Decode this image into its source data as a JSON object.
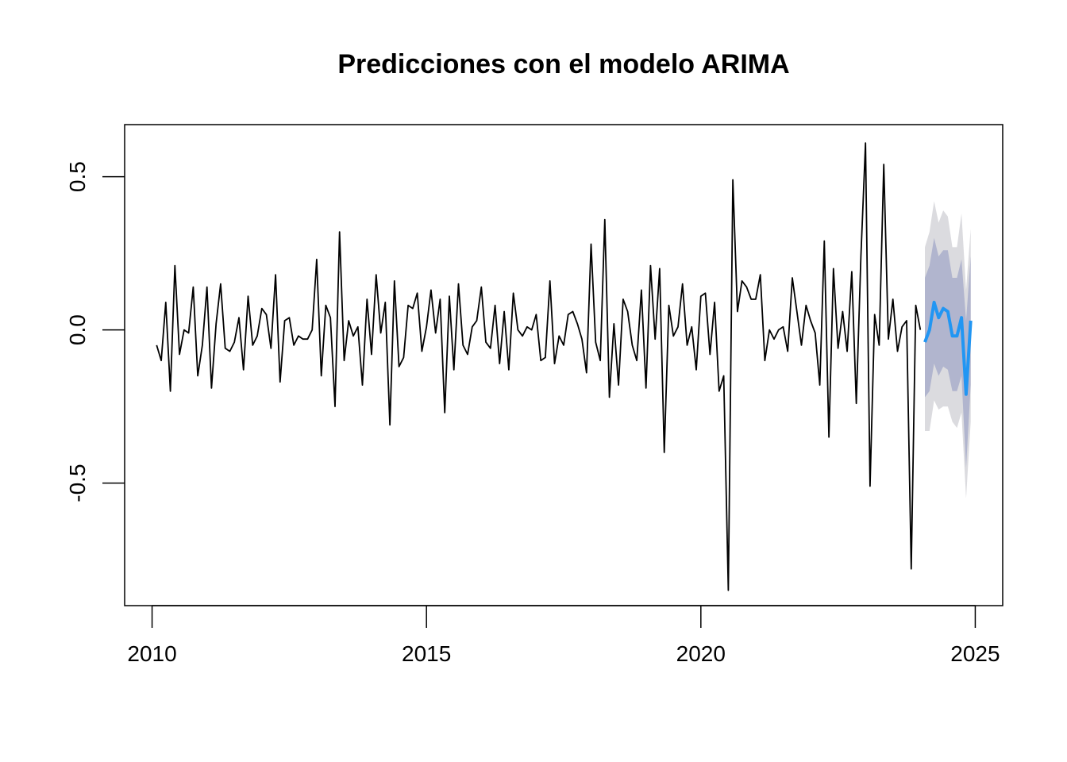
{
  "chart_data": {
    "type": "line",
    "title": "Predicciones con el modelo ARIMA",
    "xlabel": "",
    "ylabel": "",
    "xlim": [
      2009.5,
      2025.5
    ],
    "ylim": [
      -0.9,
      0.67
    ],
    "x_ticks": [
      2010,
      2015,
      2020,
      2025
    ],
    "x_tick_labels": [
      "2010",
      "2015",
      "2020",
      "2025"
    ],
    "y_ticks": [
      -0.5,
      0.0,
      0.5
    ],
    "y_tick_labels": [
      "-0.5",
      "0.0",
      "0.5"
    ],
    "grid": false,
    "legend": "none",
    "colors": {
      "observed": "#000000",
      "forecast": "#2196F3",
      "band_95": "#DBDBDF",
      "band_80": "#B1B5CE"
    },
    "series": [
      {
        "role": "observed",
        "start": 2010.083,
        "frequency": 12,
        "values": [
          -0.05,
          -0.1,
          0.09,
          -0.2,
          0.21,
          -0.08,
          0.0,
          -0.01,
          0.14,
          -0.15,
          -0.05,
          0.14,
          -0.19,
          0.02,
          0.15,
          -0.06,
          -0.07,
          -0.04,
          0.04,
          -0.13,
          0.11,
          -0.05,
          -0.02,
          0.07,
          0.05,
          -0.06,
          0.18,
          -0.17,
          0.03,
          0.04,
          -0.05,
          -0.02,
          -0.03,
          -0.03,
          0.0,
          0.23,
          -0.15,
          0.08,
          0.04,
          -0.25,
          0.32,
          -0.1,
          0.03,
          -0.02,
          0.01,
          -0.18,
          0.1,
          -0.08,
          0.18,
          -0.01,
          0.09,
          -0.31,
          0.16,
          -0.12,
          -0.09,
          0.08,
          0.07,
          0.12,
          -0.07,
          0.01,
          0.13,
          -0.01,
          0.1,
          -0.27,
          0.11,
          -0.13,
          0.15,
          -0.05,
          -0.08,
          0.01,
          0.03,
          0.14,
          -0.04,
          -0.06,
          0.08,
          -0.11,
          0.06,
          -0.13,
          0.12,
          0.0,
          -0.02,
          0.01,
          0.0,
          0.05,
          -0.1,
          -0.09,
          0.16,
          -0.11,
          -0.02,
          -0.05,
          0.05,
          0.06,
          0.02,
          -0.03,
          -0.14,
          0.28,
          -0.04,
          -0.1,
          0.36,
          -0.22,
          0.02,
          -0.18,
          0.1,
          0.06,
          -0.05,
          -0.1,
          0.13,
          -0.19,
          0.21,
          -0.03,
          0.2,
          -0.4,
          0.08,
          -0.02,
          0.01,
          0.15,
          -0.05,
          0.01,
          -0.13,
          0.11,
          0.12,
          -0.08,
          0.09,
          -0.2,
          -0.15,
          -0.85,
          0.49,
          0.06,
          0.16,
          0.14,
          0.1,
          0.1,
          0.18,
          -0.1,
          0.0,
          -0.03,
          0.0,
          0.01,
          -0.07,
          0.17,
          0.06,
          -0.05,
          0.08,
          0.03,
          -0.01,
          -0.18,
          0.29,
          -0.35,
          0.2,
          -0.06,
          0.06,
          -0.07,
          0.19,
          -0.24,
          0.24,
          0.61,
          -0.51,
          0.05,
          -0.05,
          0.54,
          -0.03,
          0.1,
          -0.07,
          0.01,
          0.03,
          -0.78,
          0.08,
          0.0
        ]
      },
      {
        "role": "forecast",
        "start": 2024.083,
        "frequency": 12,
        "values": [
          -0.04,
          0.0,
          0.09,
          0.04,
          0.07,
          0.06,
          -0.02,
          -0.02,
          0.04,
          -0.21,
          0.03
        ],
        "lo80": [
          -0.22,
          -0.2,
          -0.11,
          -0.15,
          -0.12,
          -0.13,
          -0.2,
          -0.2,
          -0.15,
          -0.45,
          -0.18
        ],
        "hi80": [
          0.17,
          0.21,
          0.3,
          0.24,
          0.26,
          0.26,
          0.17,
          0.17,
          0.23,
          0.03,
          0.24
        ],
        "lo95": [
          -0.33,
          -0.33,
          -0.23,
          -0.26,
          -0.25,
          -0.25,
          -0.3,
          -0.32,
          -0.27,
          -0.55,
          -0.3
        ],
        "hi95": [
          0.27,
          0.32,
          0.42,
          0.35,
          0.39,
          0.37,
          0.27,
          0.27,
          0.38,
          0.13,
          0.33
        ]
      }
    ]
  }
}
